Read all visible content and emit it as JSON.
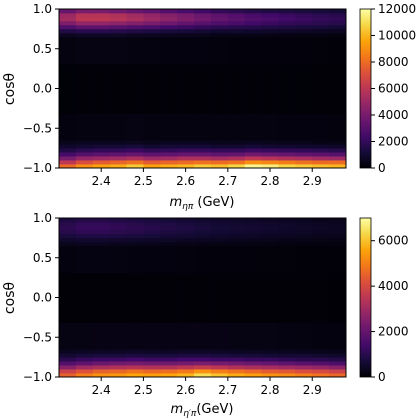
{
  "chart_data": [
    {
      "type": "heatmap",
      "xlabel": "m_{ηπ} (GeV)",
      "ylabel": "cosθ",
      "x_range": [
        2.3,
        2.98
      ],
      "y_range": [
        -1.0,
        1.0
      ],
      "x_ticks": [
        "2.4",
        "2.5",
        "2.6",
        "2.7",
        "2.8",
        "2.9"
      ],
      "y_ticks": [
        "−1.0",
        "−0.5",
        "0.0",
        "0.5",
        "1.0"
      ],
      "colorbar_range": [
        0,
        12000
      ],
      "colorbar_ticks": [
        "0",
        "2000",
        "4000",
        "6000",
        "8000",
        "10000",
        "12000"
      ],
      "colormap": "inferno",
      "x_bins": [
        2.32,
        2.36,
        2.4,
        2.44,
        2.48,
        2.52,
        2.56,
        2.6,
        2.64,
        2.68,
        2.72,
        2.76,
        2.8,
        2.84,
        2.88,
        2.92,
        2.96
      ],
      "y_bins": [
        -0.975,
        -0.925,
        -0.875,
        -0.825,
        -0.775,
        -0.725,
        -0.675,
        -0.625,
        0.0,
        0.625,
        0.675,
        0.725,
        0.775,
        0.825,
        0.875,
        0.925,
        0.975
      ],
      "z": [
        [
          8000,
          9000,
          9500,
          9800,
          10500,
          9500,
          9800,
          10000,
          10500,
          10200,
          10800,
          11800,
          11500,
          10800,
          10500,
          10200,
          10000
        ],
        [
          6000,
          7000,
          7500,
          7800,
          8200,
          7500,
          7800,
          8000,
          8200,
          8000,
          8200,
          9000,
          8800,
          8500,
          8200,
          8000,
          8000
        ],
        [
          4000,
          4800,
          5000,
          5200,
          5500,
          5000,
          5200,
          5500,
          5500,
          5300,
          5500,
          6000,
          5800,
          5600,
          5400,
          5200,
          5000
        ],
        [
          2500,
          3000,
          3200,
          3300,
          3500,
          3200,
          3300,
          3500,
          3500,
          3300,
          3400,
          3800,
          3600,
          3500,
          3300,
          3200,
          3000
        ],
        [
          1500,
          1800,
          2000,
          2000,
          2200,
          1900,
          2000,
          2100,
          2100,
          2000,
          2000,
          2200,
          2100,
          2000,
          1900,
          1800,
          1700
        ],
        [
          900,
          1000,
          1100,
          1100,
          1200,
          1000,
          1100,
          1100,
          1100,
          1000,
          1000,
          1100,
          1000,
          1000,
          900,
          900,
          800
        ],
        [
          500,
          600,
          600,
          600,
          650,
          550,
          600,
          600,
          600,
          550,
          550,
          600,
          550,
          500,
          500,
          450,
          400
        ],
        [
          250,
          300,
          300,
          300,
          350,
          300,
          300,
          300,
          300,
          280,
          280,
          300,
          280,
          250,
          250,
          220,
          200
        ],
        [
          80,
          90,
          90,
          90,
          100,
          90,
          90,
          90,
          90,
          85,
          85,
          90,
          85,
          80,
          80,
          75,
          70
        ],
        [
          300,
          350,
          350,
          320,
          300,
          280,
          260,
          240,
          220,
          200,
          190,
          180,
          170,
          160,
          150,
          140,
          130
        ],
        [
          700,
          800,
          800,
          750,
          700,
          650,
          600,
          550,
          500,
          450,
          420,
          400,
          380,
          360,
          340,
          320,
          300
        ],
        [
          1500,
          1700,
          1700,
          1600,
          1500,
          1400,
          1300,
          1200,
          1100,
          1000,
          950,
          900,
          850,
          800,
          750,
          700,
          650
        ],
        [
          2800,
          3200,
          3200,
          3000,
          2800,
          2600,
          2400,
          2200,
          2000,
          1800,
          1700,
          1600,
          1500,
          1400,
          1300,
          1200,
          1100
        ],
        [
          4200,
          4800,
          4800,
          4600,
          4300,
          4000,
          3700,
          3400,
          3100,
          2800,
          2600,
          2400,
          2200,
          2000,
          1900,
          1800,
          1700
        ],
        [
          5200,
          6000,
          6000,
          5800,
          5400,
          5000,
          4600,
          4200,
          3800,
          3400,
          3100,
          2800,
          2600,
          2400,
          2200,
          2000,
          1900
        ],
        [
          5000,
          5800,
          5800,
          5600,
          5200,
          4800,
          4400,
          4000,
          3600,
          3200,
          2900,
          2600,
          2400,
          2200,
          2000,
          1800,
          1700
        ],
        [
          3500,
          4000,
          4000,
          3800,
          3500,
          3200,
          2900,
          2600,
          2300,
          2000,
          1800,
          1600,
          1500,
          1400,
          1300,
          1200,
          1100
        ]
      ]
    },
    {
      "type": "heatmap",
      "xlabel": "m_{η′π}(GeV)",
      "ylabel": "cosθ",
      "x_range": [
        2.3,
        2.98
      ],
      "y_range": [
        -1.0,
        1.0
      ],
      "x_ticks": [
        "2.4",
        "2.5",
        "2.6",
        "2.7",
        "2.8",
        "2.9"
      ],
      "y_ticks": [
        "−1.0",
        "−0.5",
        "0.0",
        "0.5",
        "1.0"
      ],
      "colorbar_range": [
        0,
        7000
      ],
      "colorbar_ticks": [
        "0",
        "2000",
        "4000",
        "6000"
      ],
      "colormap": "inferno",
      "x_bins": [
        2.32,
        2.36,
        2.4,
        2.44,
        2.48,
        2.52,
        2.56,
        2.6,
        2.64,
        2.68,
        2.72,
        2.76,
        2.8,
        2.84,
        2.88,
        2.92,
        2.96
      ],
      "y_bins": [
        -0.975,
        -0.925,
        -0.875,
        -0.825,
        -0.775,
        -0.725,
        -0.675,
        -0.625,
        0.0,
        0.625,
        0.675,
        0.725,
        0.775,
        0.825,
        0.875,
        0.925,
        0.975
      ],
      "z": [
        [
          4500,
          5000,
          5300,
          5400,
          5600,
          5500,
          5600,
          5800,
          6400,
          6000,
          5700,
          5500,
          5300,
          5200,
          5000,
          4800,
          4600
        ],
        [
          3800,
          4200,
          4500,
          4600,
          4800,
          4600,
          4700,
          4900,
          5300,
          5000,
          4800,
          4600,
          4400,
          4300,
          4100,
          4000,
          3800
        ],
        [
          2600,
          3000,
          3200,
          3300,
          3400,
          3300,
          3300,
          3500,
          3700,
          3500,
          3300,
          3200,
          3100,
          3000,
          2900,
          2800,
          2600
        ],
        [
          1700,
          1900,
          2100,
          2200,
          2300,
          2200,
          2200,
          2300,
          2400,
          2300,
          2200,
          2100,
          2000,
          1900,
          1800,
          1700,
          1600
        ],
        [
          1000,
          1200,
          1300,
          1300,
          1400,
          1300,
          1300,
          1400,
          1400,
          1300,
          1300,
          1200,
          1200,
          1100,
          1000,
          1000,
          900
        ],
        [
          600,
          700,
          750,
          750,
          800,
          750,
          750,
          800,
          800,
          750,
          700,
          700,
          650,
          600,
          600,
          550,
          500
        ],
        [
          350,
          400,
          420,
          420,
          450,
          420,
          420,
          450,
          450,
          420,
          400,
          380,
          360,
          340,
          320,
          300,
          280
        ],
        [
          180,
          200,
          210,
          210,
          220,
          210,
          210,
          220,
          220,
          210,
          200,
          190,
          180,
          170,
          160,
          150,
          140
        ],
        [
          40,
          45,
          45,
          45,
          50,
          45,
          45,
          50,
          50,
          45,
          45,
          40,
          40,
          40,
          35,
          35,
          30
        ],
        [
          150,
          170,
          170,
          160,
          150,
          140,
          130,
          120,
          110,
          100,
          95,
          90,
          85,
          80,
          75,
          70,
          65
        ],
        [
          300,
          340,
          340,
          320,
          300,
          280,
          260,
          240,
          220,
          200,
          190,
          180,
          170,
          160,
          150,
          140,
          130
        ],
        [
          500,
          560,
          560,
          530,
          500,
          470,
          440,
          410,
          380,
          350,
          330,
          310,
          290,
          270,
          250,
          230,
          210
        ],
        [
          750,
          850,
          850,
          800,
          750,
          700,
          650,
          600,
          550,
          500,
          470,
          440,
          410,
          380,
          350,
          320,
          300
        ],
        [
          950,
          1080,
          1080,
          1020,
          950,
          880,
          810,
          740,
          680,
          620,
          580,
          540,
          500,
          460,
          430,
          400,
          370
        ],
        [
          1050,
          1200,
          1200,
          1130,
          1050,
          980,
          900,
          820,
          750,
          680,
          640,
          600,
          560,
          520,
          480,
          440,
          410
        ],
        [
          1000,
          1150,
          1150,
          1080,
          1000,
          930,
          860,
          780,
          710,
          650,
          610,
          570,
          530,
          490,
          450,
          420,
          390
        ],
        [
          800,
          920,
          920,
          860,
          800,
          740,
          680,
          620,
          560,
          510,
          480,
          450,
          420,
          390,
          360,
          330,
          310
        ]
      ]
    }
  ]
}
